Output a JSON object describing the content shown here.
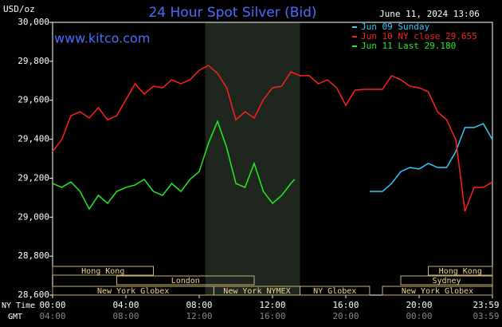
{
  "chart_data": {
    "type": "line",
    "title": "24 Hour Spot Silver (Bid)",
    "subtitle": "June 11, 2024 13:06",
    "y_label": "USD/oz",
    "watermark": "www.kitco.com",
    "x_label": "NY Time",
    "x2_label": "GMT",
    "xlim": [
      0,
      24
    ],
    "ylim": [
      28600,
      30000
    ],
    "yticks": [
      {
        "value": 28600,
        "label": "28,600"
      },
      {
        "value": 28800,
        "label": "28,800"
      },
      {
        "value": 29000,
        "label": "29,000"
      },
      {
        "value": 29200,
        "label": "29,200"
      },
      {
        "value": 29400,
        "label": "29,400"
      },
      {
        "value": 29600,
        "label": "29,600"
      },
      {
        "value": 29800,
        "label": "29,800"
      },
      {
        "value": 30000,
        "label": "30,000"
      }
    ],
    "xticks": [
      {
        "value": 0,
        "label": "00:00"
      },
      {
        "value": 4,
        "label": "04:00"
      },
      {
        "value": 8,
        "label": "08:00"
      },
      {
        "value": 12,
        "label": "12:00"
      },
      {
        "value": 16,
        "label": "16:00"
      },
      {
        "value": 20,
        "label": "20:00"
      },
      {
        "value": 24,
        "label": "23:59"
      }
    ],
    "x2ticks": [
      {
        "value": 0,
        "label": "04:00"
      },
      {
        "value": 4,
        "label": "08:00"
      },
      {
        "value": 8,
        "label": "12:00"
      },
      {
        "value": 12,
        "label": "16:00"
      },
      {
        "value": 16,
        "label": "20:00"
      },
      {
        "value": 20,
        "label": "00:00"
      },
      {
        "value": 24,
        "label": "03:59"
      }
    ],
    "highlight_x": [
      8.33,
      13.5
    ],
    "session_rows": [
      [
        {
          "name": "Hong Kong",
          "start": 0,
          "end": 5.5
        },
        {
          "name": "Hong Kong",
          "start": 20.5,
          "end": 24
        }
      ],
      [
        {
          "name": "London",
          "start": 3.5,
          "end": 11
        },
        {
          "name": "Sydney",
          "start": 19,
          "end": 24
        }
      ],
      [
        {
          "name": "New York Globex",
          "start": 0,
          "end": 8.8
        },
        {
          "name": "New York NYMEX",
          "start": 8.8,
          "end": 13.5
        },
        {
          "name": "NY Globex",
          "start": 13.5,
          "end": 17.3
        },
        {
          "name": "New York Globex",
          "start": 18,
          "end": 24
        }
      ]
    ],
    "series": [
      {
        "name": "Jun 09 Sunday",
        "color": "#33ccff",
        "x": [
          17.3,
          18,
          18.5,
          19,
          19.5,
          20,
          20.5,
          21,
          21.5,
          22,
          22.5,
          23,
          23.5,
          24
        ],
        "values": [
          29132,
          29132,
          29173,
          29234,
          29255,
          29247,
          29276,
          29255,
          29255,
          29337,
          29460,
          29460,
          29480,
          29398
        ]
      },
      {
        "name": "Jun 10 NY close 29.655",
        "color": "#ff2020",
        "x": [
          0,
          0.5,
          1,
          1.5,
          2,
          2.5,
          3,
          3.5,
          4,
          4.5,
          5,
          5.5,
          6,
          6.5,
          7,
          7.5,
          8,
          8.5,
          9,
          9.5,
          10,
          10.5,
          11,
          11.5,
          12,
          12.5,
          13,
          13.5,
          14,
          14.5,
          15,
          15.5,
          16,
          16.5,
          17,
          17.5,
          18,
          18.5,
          19,
          19.5,
          20,
          20.5,
          21,
          21.5,
          22,
          22.5,
          23,
          23.5,
          24
        ],
        "values": [
          29337,
          29398,
          29521,
          29541,
          29509,
          29562,
          29500,
          29521,
          29603,
          29685,
          29632,
          29672,
          29664,
          29705,
          29685,
          29705,
          29754,
          29779,
          29738,
          29664,
          29500,
          29541,
          29509,
          29603,
          29664,
          29672,
          29746,
          29726,
          29726,
          29685,
          29705,
          29664,
          29574,
          29652,
          29656,
          29656,
          29656,
          29726,
          29705,
          29672,
          29664,
          29644,
          29541,
          29500,
          29398,
          29030,
          29153,
          29153,
          29181
        ]
      },
      {
        "name": "Jun 11 Last 29.180",
        "color": "#22ee22",
        "x": [
          0,
          0.5,
          1,
          1.5,
          2,
          2.5,
          3,
          3.5,
          4,
          4.5,
          5,
          5.5,
          6,
          6.5,
          7,
          7.5,
          8,
          8.5,
          9,
          9.5,
          10,
          10.5,
          11,
          11.5,
          12,
          12.5,
          13,
          13.2
        ],
        "values": [
          29173,
          29153,
          29181,
          29132,
          29042,
          29112,
          29071,
          29132,
          29153,
          29165,
          29194,
          29132,
          29112,
          29173,
          29132,
          29194,
          29234,
          29378,
          29492,
          29357,
          29173,
          29153,
          29276,
          29132,
          29071,
          29112,
          29173,
          29194
        ]
      }
    ]
  }
}
